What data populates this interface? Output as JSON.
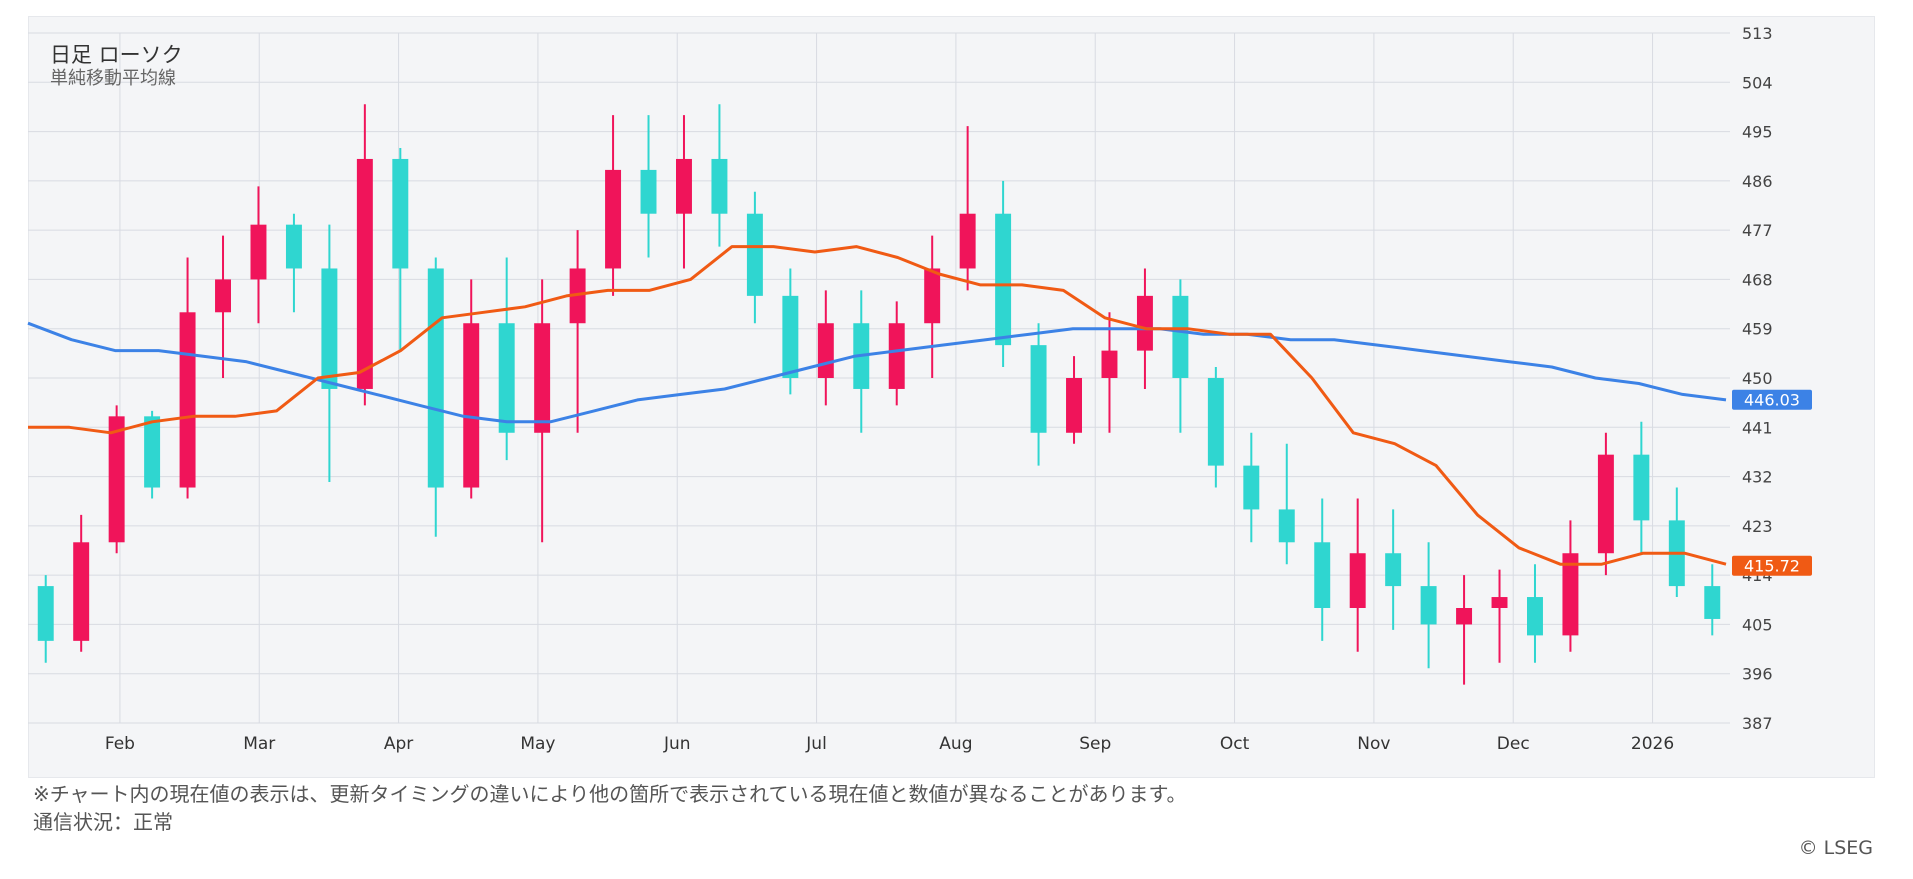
{
  "chart_title": "日足 ローソク",
  "chart_subtitle": "単純移動平均線",
  "footer": {
    "note": "※チャート内の現在値の表示は、更新タイミングの違いにより他の箇所で表示されている現在値と数値が異なることがあります。",
    "status": "通信状況：正常",
    "copyright_symbol": "©",
    "copyright": "LSEG"
  },
  "colors": {
    "up": "#f0145a",
    "down": "#2fd6d0",
    "ma_short": "#f05a14",
    "ma_long": "#3c82e6",
    "grid": "#d8dbe2"
  },
  "chart_data": {
    "type": "candlestick",
    "title": "日足 ローソク",
    "subtitle": "単純移動平均線",
    "ylim": [
      387,
      513
    ],
    "y_ticks": [
      387,
      396,
      405,
      414,
      423,
      432,
      441,
      450,
      459,
      468,
      477,
      486,
      495,
      504,
      513
    ],
    "x_ticks": [
      "Feb",
      "Mar",
      "Apr",
      "May",
      "Jun",
      "Jul",
      "Aug",
      "Sep",
      "Oct",
      "Nov",
      "Dec",
      "2026"
    ],
    "grid": true,
    "last_values": {
      "ma_long": "446.03",
      "ma_short": "415.72"
    },
    "ma_short": [
      441,
      441,
      440,
      442,
      443,
      443,
      444,
      450,
      451,
      455,
      461,
      462,
      463,
      465,
      466,
      466,
      468,
      474,
      474,
      473,
      474,
      472,
      469,
      467,
      467,
      466,
      461,
      459,
      459,
      458,
      458,
      450,
      440,
      438,
      434,
      425,
      419,
      416,
      416,
      418,
      418,
      416
    ],
    "ma_long": [
      460,
      457,
      455,
      455,
      454,
      453,
      451,
      449,
      447,
      445,
      443,
      442,
      442,
      444,
      446,
      447,
      448,
      450,
      452,
      454,
      455,
      456,
      457,
      458,
      459,
      459,
      459,
      458,
      458,
      457,
      457,
      456,
      455,
      454,
      453,
      452,
      450,
      449,
      447,
      446
    ],
    "candles": [
      [
        412,
        414,
        398,
        402
      ],
      [
        402,
        425,
        400,
        420
      ],
      [
        420,
        445,
        418,
        443
      ],
      [
        443,
        444,
        428,
        430
      ],
      [
        430,
        472,
        428,
        462
      ],
      [
        462,
        476,
        450,
        468
      ],
      [
        468,
        485,
        460,
        478
      ],
      [
        478,
        480,
        462,
        470
      ],
      [
        470,
        478,
        431,
        448
      ],
      [
        448,
        500,
        445,
        490
      ],
      [
        490,
        492,
        455,
        470
      ],
      [
        470,
        472,
        421,
        430
      ],
      [
        430,
        468,
        428,
        460
      ],
      [
        460,
        472,
        435,
        440
      ],
      [
        440,
        468,
        420,
        460
      ],
      [
        460,
        477,
        440,
        470
      ],
      [
        470,
        498,
        465,
        488
      ],
      [
        488,
        498,
        472,
        480
      ],
      [
        480,
        498,
        470,
        490
      ],
      [
        490,
        500,
        474,
        480
      ],
      [
        480,
        484,
        460,
        465
      ],
      [
        465,
        470,
        447,
        450
      ],
      [
        450,
        466,
        445,
        460
      ],
      [
        460,
        466,
        440,
        448
      ],
      [
        448,
        464,
        445,
        460
      ],
      [
        460,
        476,
        450,
        470
      ],
      [
        470,
        496,
        466,
        480
      ],
      [
        480,
        486,
        452,
        456
      ],
      [
        456,
        460,
        434,
        440
      ],
      [
        440,
        454,
        438,
        450
      ],
      [
        450,
        462,
        440,
        455
      ],
      [
        455,
        470,
        448,
        465
      ],
      [
        465,
        468,
        440,
        450
      ],
      [
        450,
        452,
        430,
        434
      ],
      [
        434,
        440,
        420,
        426
      ],
      [
        426,
        438,
        416,
        420
      ],
      [
        420,
        428,
        402,
        408
      ],
      [
        408,
        428,
        400,
        418
      ],
      [
        418,
        426,
        404,
        412
      ],
      [
        412,
        420,
        397,
        405
      ],
      [
        405,
        414,
        394,
        408
      ],
      [
        408,
        415,
        398,
        410
      ],
      [
        410,
        416,
        398,
        403
      ],
      [
        403,
        424,
        400,
        418
      ],
      [
        418,
        440,
        414,
        436
      ],
      [
        436,
        442,
        418,
        424
      ],
      [
        424,
        430,
        410,
        412
      ],
      [
        412,
        416,
        403,
        406
      ]
    ]
  }
}
